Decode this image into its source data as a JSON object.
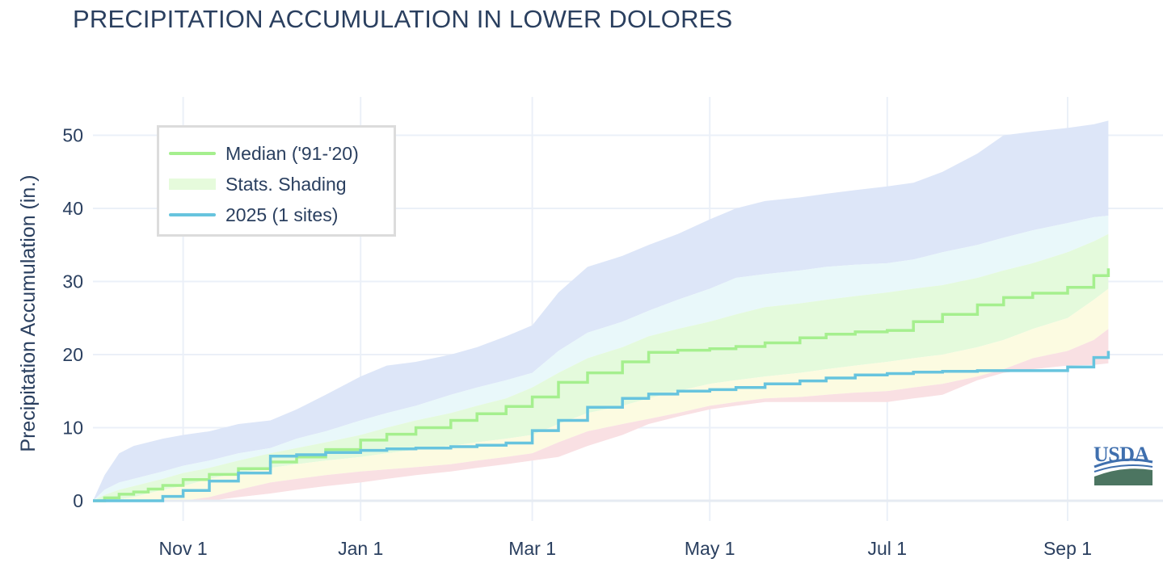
{
  "chart_data": {
    "type": "area",
    "title": "PRECIPITATION ACCUMULATION IN LOWER DOLORES",
    "xlabel": "",
    "ylabel": "Precipitation Accumulation (in.)",
    "ylim": [
      -3,
      55
    ],
    "xlim": [
      "2024-10-01",
      "2025-09-15"
    ],
    "x_ticks": [
      {
        "date": "2024-11-01",
        "label": "Nov 1"
      },
      {
        "date": "2025-01-01",
        "label": "Jan 1"
      },
      {
        "date": "2025-03-01",
        "label": "Mar 1"
      },
      {
        "date": "2025-05-01",
        "label": "May 1"
      },
      {
        "date": "2025-07-01",
        "label": "Jul 1"
      },
      {
        "date": "2025-09-01",
        "label": "Sep 1"
      }
    ],
    "y_ticks": [
      0,
      10,
      20,
      30,
      40,
      50
    ],
    "grid": true,
    "legend_position": "top-left",
    "legend": [
      {
        "label": "Median ('91-'20)",
        "kind": "line",
        "color": "#a5ef8e"
      },
      {
        "label": "Stats. Shading",
        "kind": "fill",
        "color": "#e6fbdc"
      },
      {
        "label": "2025 (1 sites)",
        "kind": "line",
        "color": "#67c4de"
      }
    ],
    "band_colors": {
      "max_to_p90": "#dde6f8",
      "p90_to_p70": "#e9f8fa",
      "p70_to_p30": "#e4fadc",
      "p30_to_p10": "#fcfbe1",
      "p10_to_min": "#f9e0e3"
    },
    "x": [
      "2024-10-01",
      "2024-10-05",
      "2024-10-10",
      "2024-10-15",
      "2024-10-20",
      "2024-10-25",
      "2024-11-01",
      "2024-11-10",
      "2024-11-20",
      "2024-12-01",
      "2024-12-10",
      "2024-12-20",
      "2025-01-01",
      "2025-01-10",
      "2025-01-20",
      "2025-02-01",
      "2025-02-10",
      "2025-02-20",
      "2025-03-01",
      "2025-03-10",
      "2025-03-20",
      "2025-04-01",
      "2025-04-10",
      "2025-04-20",
      "2025-05-01",
      "2025-05-10",
      "2025-05-20",
      "2025-06-01",
      "2025-06-10",
      "2025-06-20",
      "2025-07-01",
      "2025-07-10",
      "2025-07-20",
      "2025-08-01",
      "2025-08-10",
      "2025-08-20",
      "2025-09-01",
      "2025-09-10",
      "2025-09-15"
    ],
    "series": [
      {
        "name": "max",
        "values": [
          0,
          3.5,
          6.5,
          7.5,
          8,
          8.5,
          9,
          9.5,
          10.5,
          11,
          12.5,
          14.5,
          17,
          18.5,
          19,
          20,
          21,
          22.5,
          24,
          28.5,
          32,
          33.5,
          35,
          36.5,
          38.5,
          40,
          41,
          41.5,
          42,
          42.5,
          43,
          43.5,
          45,
          47.5,
          50,
          50.5,
          51,
          51.5,
          52
        ]
      },
      {
        "name": "p90",
        "values": [
          0,
          1.5,
          2.5,
          3,
          3.5,
          4,
          4.8,
          5.5,
          6.5,
          7.2,
          8.5,
          9.5,
          11,
          12,
          13,
          14.5,
          15.5,
          16.5,
          17.5,
          20.5,
          23,
          24.5,
          26,
          27.5,
          29,
          30.5,
          31,
          31.5,
          32,
          32.3,
          32.5,
          33,
          34,
          35,
          36,
          37,
          38,
          38.8,
          39
        ]
      },
      {
        "name": "p70",
        "values": [
          0,
          0.8,
          1.5,
          2,
          2.5,
          3,
          3.8,
          4.5,
          5.5,
          6.5,
          7.2,
          8,
          9,
          10,
          11,
          12,
          13,
          14,
          15.5,
          17.5,
          19.5,
          21,
          22.5,
          23.5,
          24.5,
          25.5,
          26.5,
          27,
          27.5,
          28,
          28.5,
          29,
          29.5,
          30.5,
          31.5,
          32.5,
          34,
          35.5,
          36.5
        ]
      },
      {
        "name": "p30",
        "values": [
          0,
          0,
          0.2,
          0.5,
          1,
          1.5,
          2,
          3,
          3.8,
          4.5,
          5,
          5.5,
          6,
          6.5,
          7,
          7.5,
          8,
          8.5,
          9,
          10.5,
          12,
          13,
          14,
          15,
          16,
          16.5,
          17,
          17.5,
          18,
          18.5,
          19,
          19.5,
          20,
          21,
          22,
          23.5,
          25,
          27.5,
          29
        ]
      },
      {
        "name": "p10",
        "values": [
          0,
          0,
          0,
          0,
          0,
          0,
          0,
          0.5,
          1.5,
          2.5,
          3,
          3.5,
          4,
          4.3,
          4.6,
          5,
          5.5,
          6,
          6.5,
          8,
          9.5,
          10.5,
          11.2,
          12,
          13,
          13.5,
          14,
          14.2,
          14.5,
          14.8,
          15,
          15.5,
          16,
          17,
          18,
          19.5,
          20.5,
          22,
          23.5
        ]
      },
      {
        "name": "min",
        "values": [
          0,
          0,
          0,
          0,
          0,
          0,
          0,
          0,
          0.5,
          1,
          1.5,
          2,
          2.5,
          3,
          3.5,
          4,
          4.5,
          5,
          5.5,
          6,
          7.5,
          9,
          10.5,
          11.5,
          12.5,
          13,
          13.5,
          13.5,
          13.5,
          13.5,
          13.5,
          14,
          14.5,
          16.5,
          17.5,
          18,
          18.5,
          18.6,
          18.8
        ]
      },
      {
        "name": "Median ('91-'20)",
        "values": [
          0,
          0.4,
          0.9,
          1.2,
          1.6,
          2.1,
          2.9,
          3.6,
          4.4,
          5.3,
          6,
          7,
          8.3,
          9.1,
          10,
          11,
          11.9,
          12.9,
          14.2,
          16.2,
          17.5,
          19,
          20.3,
          20.6,
          20.8,
          21.1,
          21.6,
          22.3,
          22.8,
          23.1,
          23.3,
          24.5,
          25.5,
          26.8,
          27.8,
          28.4,
          29.2,
          30.8,
          31.8
        ]
      },
      {
        "name": "2025 (1 sites)",
        "values": [
          0,
          0,
          0,
          0,
          0,
          0.6,
          1.4,
          2.7,
          3.8,
          6.1,
          6.3,
          6.6,
          6.9,
          7.1,
          7.2,
          7.4,
          7.6,
          7.9,
          9.6,
          11.0,
          12.8,
          14.0,
          14.6,
          15.0,
          15.2,
          15.5,
          16.0,
          16.4,
          16.8,
          17.2,
          17.4,
          17.6,
          17.7,
          17.8,
          17.8,
          17.8,
          18.3,
          19.6,
          20.5
        ]
      }
    ]
  }
}
